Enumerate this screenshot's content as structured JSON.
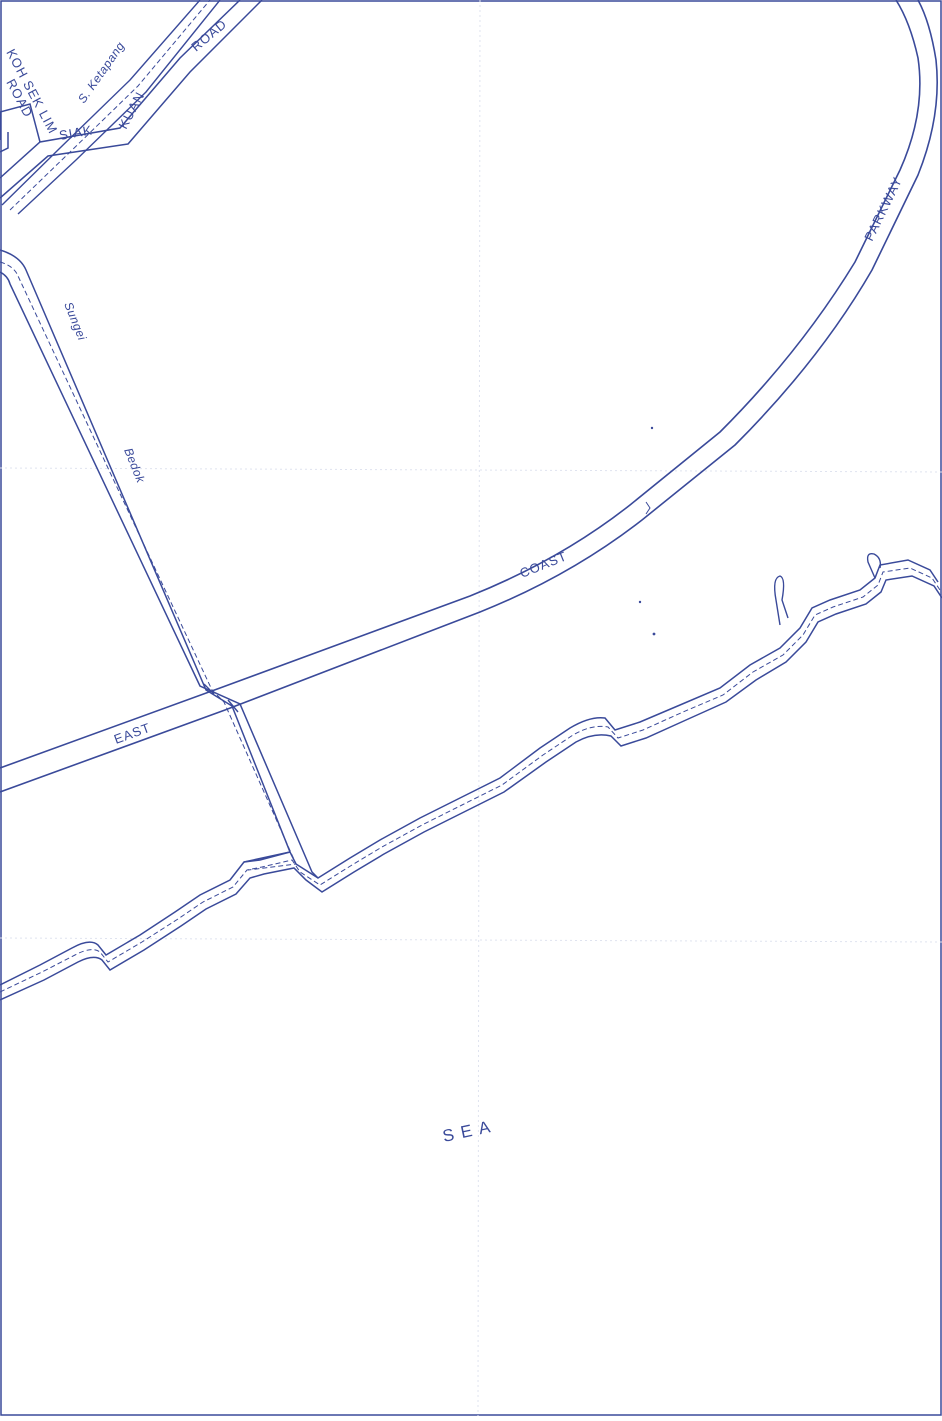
{
  "map": {
    "ink_color": "#3a4a9a",
    "paper_color": "#ffffff",
    "grid_color": "#dfe3ef"
  },
  "labels": {
    "koh_sek_lim": "KOH SEK LIM",
    "road_left": "ROAD",
    "s_ketapang": "S. Ketapang",
    "siak": "SIAK",
    "kuan": "KUAN",
    "road_top": "ROAD",
    "parkway": "PARKWAY",
    "sungei": "Sungei",
    "bedok": "Bedok",
    "coast": "COAST",
    "east": "EAST",
    "sea": "SEA"
  }
}
